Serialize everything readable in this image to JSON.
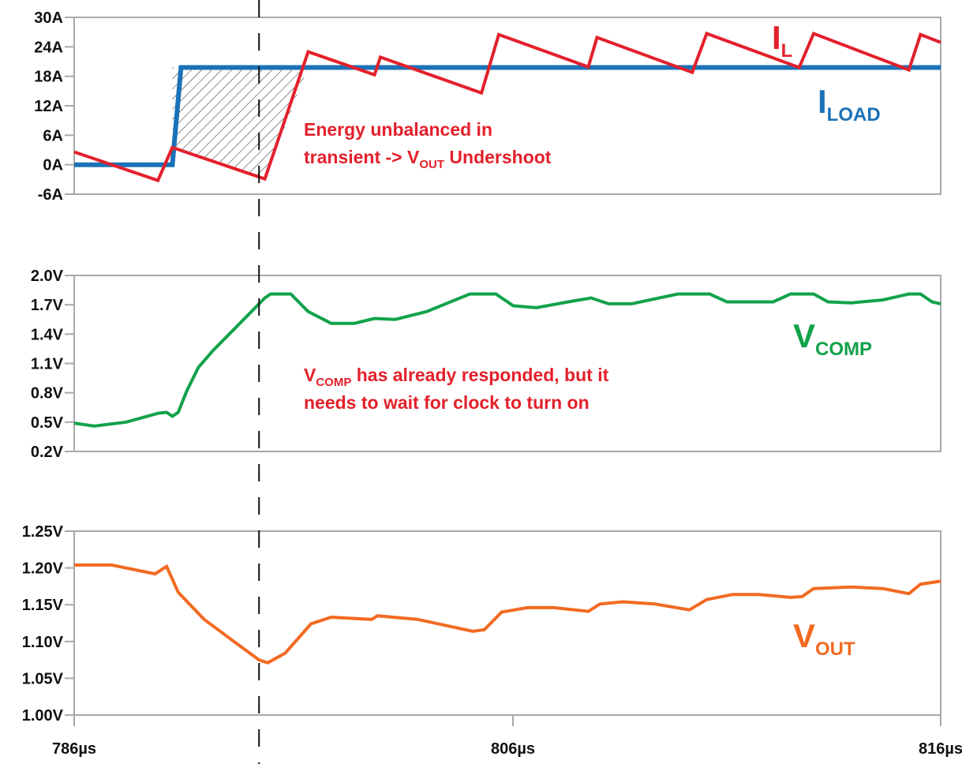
{
  "chart_data": [
    {
      "type": "line",
      "xlim": [
        786,
        816
      ],
      "ylim": [
        -6,
        30
      ],
      "yticks": [
        "30A",
        "24A",
        "18A",
        "12A",
        "6A",
        "0A",
        "-6A"
      ],
      "ytick_values": [
        30,
        24,
        18,
        12,
        6,
        0,
        -6
      ],
      "series": [
        {
          "name": "I_L",
          "label_main": "I",
          "label_sub": "L",
          "color": "#e3202b",
          "x": [
            786.0,
            788.9,
            789.4,
            792.6,
            794.1,
            796.4,
            796.6,
            800.1,
            800.7,
            803.8,
            804.1,
            807.4,
            807.9,
            811.1,
            811.6,
            814.9,
            815.3,
            816.0
          ],
          "y": [
            2.6,
            -3.2,
            3.5,
            -2.9,
            23.0,
            18.3,
            21.9,
            14.6,
            26.5,
            19.9,
            25.9,
            18.8,
            26.7,
            19.8,
            26.7,
            19.3,
            26.5,
            24.9
          ]
        },
        {
          "name": "I_LOAD",
          "label_main": "I",
          "label_sub": "LOAD",
          "color": "#1a72b8",
          "x": [
            786.0,
            789.4,
            789.7,
            816.0
          ],
          "y": [
            0,
            0,
            19.8,
            19.8
          ]
        }
      ],
      "hatched_region": {
        "x_start": 789.4,
        "x_end": 794.1
      },
      "annotation": {
        "line1": "Energy unbalanced in",
        "line2_a": "transient -> V",
        "line2_sub": "OUT",
        "line2_b": " Undershoot",
        "color": "#e3202b"
      }
    },
    {
      "type": "line",
      "xlim": [
        786,
        816
      ],
      "ylim": [
        0.2,
        2.0
      ],
      "yticks": [
        "2.0V",
        "1.7V",
        "1.4V",
        "1.1V",
        "0.8V",
        "0.5V",
        "0.2V"
      ],
      "ytick_values": [
        2.0,
        1.7,
        1.4,
        1.1,
        0.8,
        0.5,
        0.2
      ],
      "series": [
        {
          "name": "V_COMP",
          "label_main": "V",
          "label_sub": "COMP",
          "color": "#12a24b",
          "x": [
            786.0,
            786.7,
            787.8,
            788.9,
            789.2,
            789.4,
            789.6,
            789.9,
            790.3,
            790.8,
            791.6,
            792.6,
            792.8,
            793.5,
            794.1,
            794.9,
            795.7,
            796.4,
            797.1,
            798.2,
            799.7,
            800.6,
            801.2,
            802.0,
            803.1,
            803.9,
            804.5,
            805.3,
            806.9,
            808.0,
            808.6,
            810.2,
            810.8,
            811.6,
            812.1,
            812.9,
            814.0,
            814.9,
            815.3,
            815.7,
            816.0
          ],
          "y": [
            0.49,
            0.46,
            0.5,
            0.59,
            0.6,
            0.56,
            0.6,
            0.82,
            1.06,
            1.23,
            1.47,
            1.77,
            1.81,
            1.81,
            1.63,
            1.51,
            1.51,
            1.56,
            1.55,
            1.63,
            1.81,
            1.81,
            1.69,
            1.67,
            1.73,
            1.77,
            1.71,
            1.71,
            1.81,
            1.81,
            1.73,
            1.73,
            1.81,
            1.81,
            1.73,
            1.72,
            1.75,
            1.81,
            1.81,
            1.73,
            1.71
          ]
        }
      ],
      "annotation": {
        "line1_a": "V",
        "line1_sub": "COMP",
        "line1_b": " has already responded, but it",
        "line2": "needs to wait for clock to turn on",
        "color": "#e3202b"
      }
    },
    {
      "type": "line",
      "xlim": [
        786,
        816
      ],
      "ylim": [
        1.0,
        1.25
      ],
      "yticks": [
        "1.25V",
        "1.20V",
        "1.15V",
        "1.10V",
        "1.05V",
        "1.00V"
      ],
      "ytick_values": [
        1.25,
        1.2,
        1.15,
        1.1,
        1.05,
        1.0
      ],
      "xticks": [
        "786µs",
        "806µs",
        "816µs"
      ],
      "series": [
        {
          "name": "V_OUT",
          "label_main": "V",
          "label_sub": "OUT",
          "color": "#f26a21",
          "x": [
            786.0,
            787.3,
            788.8,
            789.2,
            789.6,
            790.5,
            791.6,
            792.4,
            792.7,
            793.3,
            794.2,
            794.9,
            796.3,
            796.5,
            797.9,
            799.8,
            800.2,
            800.8,
            801.7,
            802.6,
            803.8,
            804.2,
            805.0,
            806.1,
            807.3,
            807.9,
            808.8,
            809.7,
            810.8,
            811.2,
            811.6,
            812.9,
            814.0,
            814.9,
            815.3,
            816.0
          ],
          "y": [
            1.204,
            1.204,
            1.192,
            1.202,
            1.167,
            1.13,
            1.098,
            1.075,
            1.071,
            1.084,
            1.124,
            1.133,
            1.13,
            1.135,
            1.13,
            1.114,
            1.116,
            1.14,
            1.146,
            1.146,
            1.141,
            1.151,
            1.154,
            1.151,
            1.143,
            1.157,
            1.164,
            1.164,
            1.16,
            1.161,
            1.172,
            1.174,
            1.172,
            1.165,
            1.178,
            1.182
          ]
        }
      ]
    }
  ],
  "marker_time": 792.4
}
